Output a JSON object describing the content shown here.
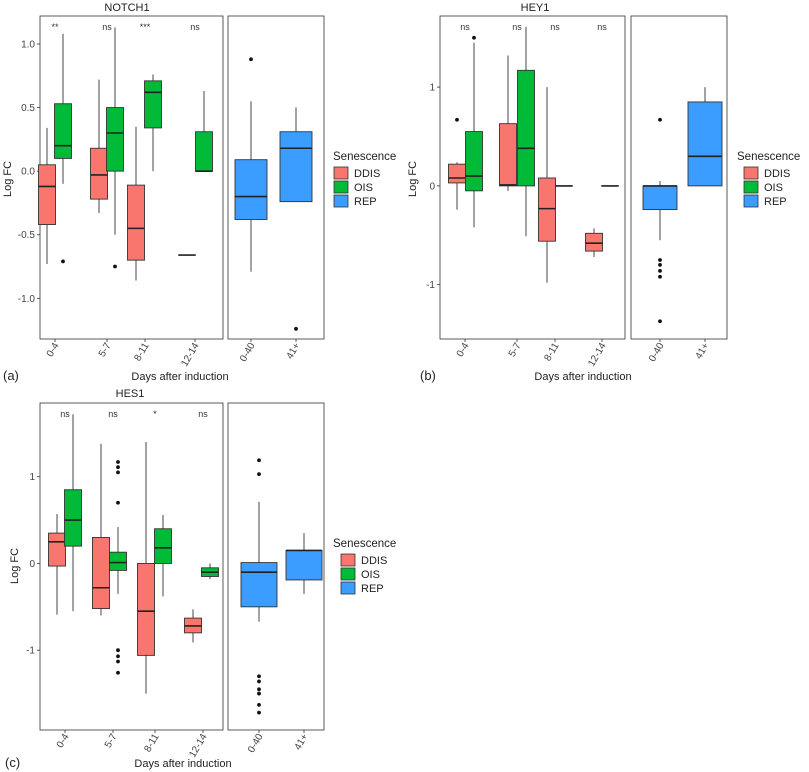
{
  "colors": {
    "DDIS": "#F8766D",
    "OIS": "#00BA38",
    "REP": "#3B9DFF"
  },
  "chart_data": [
    {
      "type": "boxplot",
      "panel_label": "(a)",
      "title": "NOTCH1",
      "xlabel": "Days after induction",
      "ylabel": "Log FC",
      "yticks": [
        {
          "v": 1.0,
          "label": "1.0"
        },
        {
          "v": 0.5,
          "label": "0.5"
        },
        {
          "v": 0.0,
          "label": "0.0"
        },
        {
          "v": -0.5,
          "label": "-0.5"
        },
        {
          "v": -1.0,
          "label": "-1.0"
        }
      ],
      "ylim": [
        -1.32,
        1.22
      ],
      "legend": {
        "title": "Senescence",
        "items": [
          "DDIS",
          "OIS",
          "REP"
        ]
      },
      "groups": [
        {
          "label": "0-4",
          "significance": "**"
        },
        {
          "label": "5-7",
          "significance": "ns"
        },
        {
          "label": "8-11",
          "significance": "***"
        },
        {
          "label": "12-14",
          "significance": "ns"
        },
        {
          "label": "0-40",
          "significance": ""
        },
        {
          "label": "41+",
          "significance": ""
        }
      ],
      "boxes": [
        {
          "group": 0,
          "series": "DDIS",
          "min": -0.73,
          "q1": -0.42,
          "median": -0.12,
          "q3": 0.05,
          "max": 0.34,
          "outliers": []
        },
        {
          "group": 0,
          "series": "OIS",
          "min": -0.1,
          "q1": 0.1,
          "median": 0.2,
          "q3": 0.53,
          "max": 1.08,
          "outliers": [
            -0.71
          ]
        },
        {
          "group": 1,
          "series": "DDIS",
          "min": -0.33,
          "q1": -0.22,
          "median": -0.03,
          "q3": 0.18,
          "max": 0.72,
          "outliers": []
        },
        {
          "group": 1,
          "series": "OIS",
          "min": -0.5,
          "q1": 0.0,
          "median": 0.3,
          "q3": 0.5,
          "max": 1.13,
          "outliers": [
            -0.75
          ]
        },
        {
          "group": 2,
          "series": "DDIS",
          "min": -0.86,
          "q1": -0.7,
          "median": -0.45,
          "q3": -0.11,
          "max": 0.35,
          "outliers": []
        },
        {
          "group": 2,
          "series": "OIS",
          "min": 0.0,
          "q1": 0.34,
          "median": 0.62,
          "q3": 0.71,
          "max": 0.76,
          "outliers": []
        },
        {
          "group": 3,
          "series": "DDIS",
          "min": -0.66,
          "q1": -0.66,
          "median": -0.66,
          "q3": -0.66,
          "max": -0.66,
          "outliers": []
        },
        {
          "group": 3,
          "series": "OIS",
          "min": 0.0,
          "q1": 0.0,
          "median": 0.0,
          "q3": 0.31,
          "max": 0.63,
          "outliers": []
        },
        {
          "group": 4,
          "series": "REP",
          "min": -0.79,
          "q1": -0.38,
          "median": -0.2,
          "q3": 0.09,
          "max": 0.55,
          "outliers": [
            0.88
          ]
        },
        {
          "group": 5,
          "series": "REP",
          "min": -0.24,
          "q1": -0.24,
          "median": 0.18,
          "q3": 0.31,
          "max": 0.5,
          "outliers": [
            -1.24
          ]
        }
      ]
    },
    {
      "type": "boxplot",
      "panel_label": "(b)",
      "title": "HEY1",
      "xlabel": "Days after induction",
      "ylabel": "Log FC",
      "yticks": [
        {
          "v": 1,
          "label": "1"
        },
        {
          "v": 0,
          "label": "0"
        },
        {
          "v": -1,
          "label": "-1"
        }
      ],
      "ylim": [
        -1.55,
        1.72
      ],
      "legend": {
        "title": "Senescence",
        "items": [
          "DDIS",
          "OIS",
          "REP"
        ]
      },
      "groups": [
        {
          "label": "0-4",
          "significance": "ns"
        },
        {
          "label": "5-7",
          "significance": "ns"
        },
        {
          "label": "8-11",
          "significance": "ns"
        },
        {
          "label": "12-14",
          "significance": "ns"
        },
        {
          "label": "0-40",
          "significance": ""
        },
        {
          "label": "41+",
          "significance": ""
        }
      ],
      "boxes": [
        {
          "group": 0,
          "series": "DDIS",
          "min": -0.24,
          "q1": 0.03,
          "median": 0.08,
          "q3": 0.22,
          "max": 0.24,
          "outliers": [
            0.67
          ]
        },
        {
          "group": 0,
          "series": "OIS",
          "min": -0.42,
          "q1": -0.05,
          "median": 0.1,
          "q3": 0.55,
          "max": 1.45,
          "outliers": [
            1.5
          ]
        },
        {
          "group": 1,
          "series": "DDIS",
          "min": -0.05,
          "q1": 0.0,
          "median": 0.01,
          "q3": 0.63,
          "max": 1.32,
          "outliers": []
        },
        {
          "group": 1,
          "series": "OIS",
          "min": -0.51,
          "q1": 0.0,
          "median": 0.38,
          "q3": 1.17,
          "max": 1.61,
          "outliers": []
        },
        {
          "group": 2,
          "series": "DDIS",
          "min": -0.98,
          "q1": -0.56,
          "median": -0.23,
          "q3": 0.08,
          "max": 1.0,
          "outliers": []
        },
        {
          "group": 2,
          "series": "OIS",
          "min": 0.0,
          "q1": 0.0,
          "median": 0.0,
          "q3": 0.0,
          "max": 0.0,
          "outliers": []
        },
        {
          "group": 3,
          "series": "DDIS",
          "min": -0.72,
          "q1": -0.66,
          "median": -0.58,
          "q3": -0.48,
          "max": -0.43,
          "outliers": []
        },
        {
          "group": 3,
          "series": "OIS",
          "min": 0.0,
          "q1": 0.0,
          "median": 0.0,
          "q3": 0.0,
          "max": 0.0,
          "outliers": []
        },
        {
          "group": 4,
          "series": "REP",
          "min": -0.55,
          "q1": -0.24,
          "median": 0.0,
          "q3": 0.0,
          "max": 0.05,
          "outliers": [
            0.67,
            -0.75,
            -0.8,
            -0.86,
            -0.92,
            -1.37
          ]
        },
        {
          "group": 5,
          "series": "REP",
          "min": 0.0,
          "q1": 0.0,
          "median": 0.3,
          "q3": 0.85,
          "max": 1.0,
          "outliers": []
        }
      ]
    },
    {
      "type": "boxplot",
      "panel_label": "(c)",
      "title": "HES1",
      "xlabel": "Days after induction",
      "ylabel": "Log FC",
      "yticks": [
        {
          "v": 1,
          "label": "1"
        },
        {
          "v": 0,
          "label": "0"
        },
        {
          "v": -1,
          "label": "-1"
        }
      ],
      "ylim": [
        -1.92,
        1.85
      ],
      "legend": {
        "title": "Senescence",
        "items": [
          "DDIS",
          "OIS",
          "REP"
        ]
      },
      "groups": [
        {
          "label": "0-4",
          "significance": "ns"
        },
        {
          "label": "5-7",
          "significance": "ns"
        },
        {
          "label": "8-11",
          "significance": "*"
        },
        {
          "label": "12-14",
          "significance": "ns"
        },
        {
          "label": "0-40",
          "significance": ""
        },
        {
          "label": "41+",
          "significance": ""
        }
      ],
      "boxes": [
        {
          "group": 0,
          "series": "DDIS",
          "min": -0.59,
          "q1": -0.03,
          "median": 0.25,
          "q3": 0.35,
          "max": 0.57,
          "outliers": []
        },
        {
          "group": 0,
          "series": "OIS",
          "min": -0.55,
          "q1": 0.2,
          "median": 0.5,
          "q3": 0.85,
          "max": 1.72,
          "outliers": []
        },
        {
          "group": 1,
          "series": "DDIS",
          "min": -0.6,
          "q1": -0.52,
          "median": -0.28,
          "q3": 0.3,
          "max": 1.38,
          "outliers": []
        },
        {
          "group": 1,
          "series": "OIS",
          "min": -0.35,
          "q1": -0.08,
          "median": 0.01,
          "q3": 0.13,
          "max": 0.42,
          "outliers": [
            1.17,
            1.11,
            1.05,
            0.7,
            -1.0,
            -1.07,
            -1.13,
            -1.26
          ]
        },
        {
          "group": 2,
          "series": "DDIS",
          "min": -1.5,
          "q1": -1.06,
          "median": -0.55,
          "q3": 0.0,
          "max": 1.4,
          "outliers": []
        },
        {
          "group": 2,
          "series": "OIS",
          "min": -0.38,
          "q1": 0.0,
          "median": 0.18,
          "q3": 0.4,
          "max": 0.56,
          "outliers": []
        },
        {
          "group": 3,
          "series": "DDIS",
          "min": -0.91,
          "q1": -0.8,
          "median": -0.72,
          "q3": -0.63,
          "max": -0.53,
          "outliers": []
        },
        {
          "group": 3,
          "series": "OIS",
          "min": -0.18,
          "q1": -0.15,
          "median": -0.1,
          "q3": -0.05,
          "max": 0.0,
          "outliers": []
        },
        {
          "group": 4,
          "series": "REP",
          "min": -0.67,
          "q1": -0.5,
          "median": -0.1,
          "q3": 0.01,
          "max": 0.71,
          "outliers": [
            1.19,
            1.03,
            -1.3,
            -1.36,
            -1.45,
            -1.5,
            -1.63,
            -1.72
          ]
        },
        {
          "group": 5,
          "series": "REP",
          "min": -0.35,
          "q1": -0.19,
          "median": 0.15,
          "q3": 0.15,
          "max": 0.35,
          "outliers": []
        }
      ]
    }
  ]
}
